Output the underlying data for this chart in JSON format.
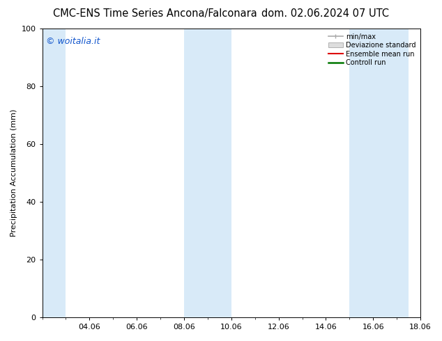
{
  "title_left": "CMC-ENS Time Series Ancona/Falconara",
  "title_right": "dom. 02.06.2024 07 UTC",
  "ylabel": "Precipitation Accumulation (mm)",
  "watermark": "© woitalia.it",
  "ylim": [
    0,
    100
  ],
  "x_min": 0.0,
  "x_max": 16.0,
  "xtick_labels": [
    "04.06",
    "06.06",
    "08.06",
    "10.06",
    "12.06",
    "14.06",
    "16.06",
    "18.06"
  ],
  "xtick_positions": [
    2.0,
    4.0,
    6.0,
    8.0,
    10.0,
    12.0,
    14.0,
    16.0
  ],
  "shaded_bands": [
    {
      "x_start": 0.0,
      "x_end": 1.0
    },
    {
      "x_start": 6.0,
      "x_end": 8.0
    },
    {
      "x_start": 13.0,
      "x_end": 14.0
    },
    {
      "x_start": 14.0,
      "x_end": 15.5
    }
  ],
  "band_color": "#d8eaf8",
  "ytick_positions": [
    0,
    20,
    40,
    60,
    80,
    100
  ],
  "legend_entries": [
    "min/max",
    "Deviazione standard",
    "Ensemble mean run",
    "Controll run"
  ],
  "legend_line_colors": [
    "#aaaaaa",
    "#bbbbbb",
    "#dd0000",
    "#007700"
  ],
  "background_color": "#ffffff",
  "plot_bg_color": "#ffffff",
  "title_fontsize": 10.5,
  "label_fontsize": 8,
  "tick_fontsize": 8,
  "watermark_color": "#1155cc",
  "watermark_fontsize": 9
}
